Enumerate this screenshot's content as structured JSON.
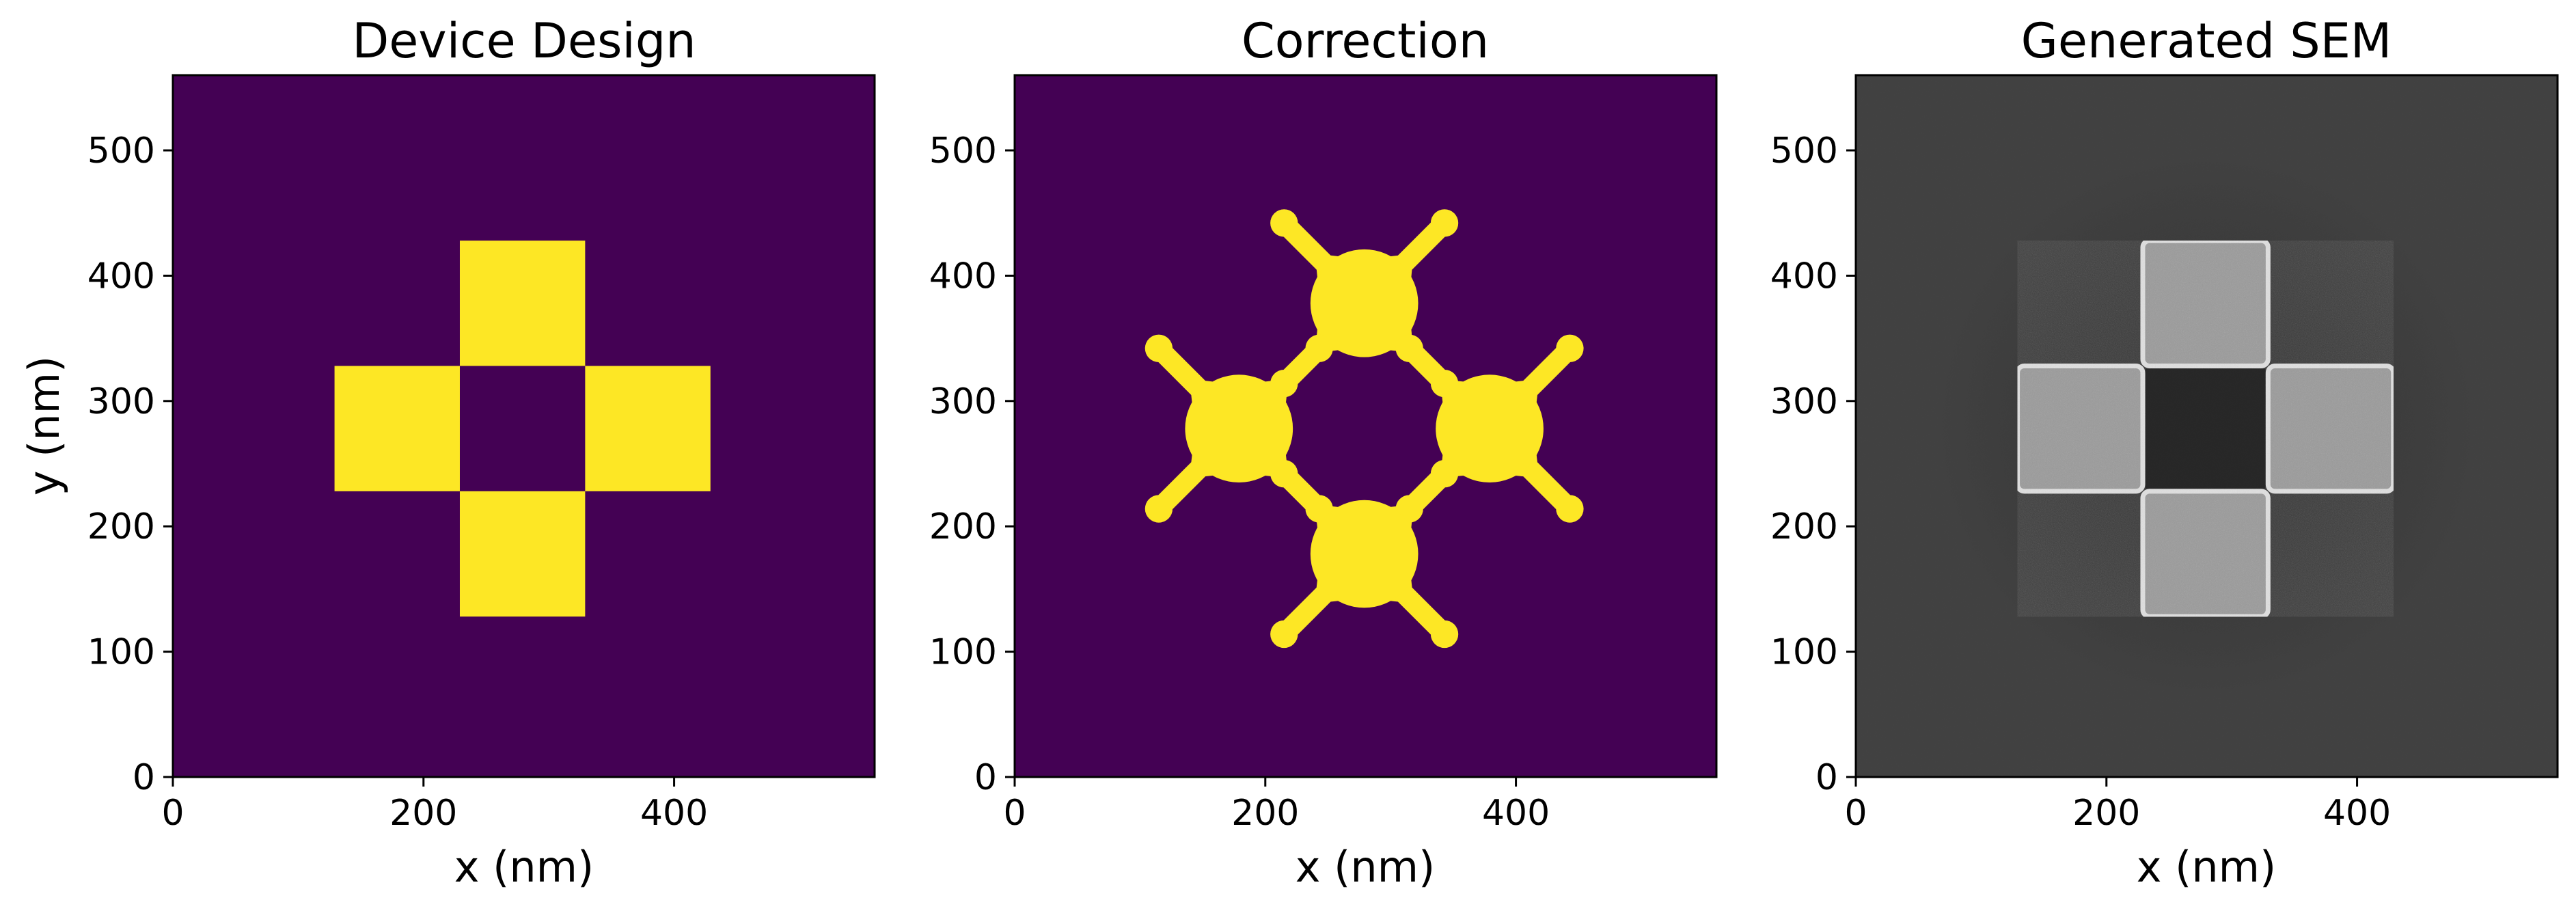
{
  "colors": {
    "background_purple": "#440154",
    "foreground_yellow": "#fde725",
    "sem_background": "#3c3c3c",
    "sem_square_fill": "#a0a0a0",
    "sem_edge": "#e6e6e6",
    "sem_hole": "#202020"
  },
  "chart_data": [
    {
      "type": "heatmap",
      "title": "Device Design",
      "xlabel": "x (nm)",
      "ylabel": "y (nm)",
      "xlim": [
        0,
        560
      ],
      "ylim": [
        0,
        560
      ],
      "xticks": [
        0,
        200,
        400
      ],
      "yticks": [
        0,
        100,
        200,
        300,
        400,
        500
      ],
      "grid": false,
      "colormap": "viridis (binary)",
      "shapes": [
        {
          "name": "top-square",
          "x": [
            229,
            329
          ],
          "y": [
            328,
            428
          ]
        },
        {
          "name": "left-square",
          "x": [
            129,
            229
          ],
          "y": [
            228,
            328
          ]
        },
        {
          "name": "right-square",
          "x": [
            329,
            429
          ],
          "y": [
            228,
            328
          ]
        },
        {
          "name": "bottom-square",
          "x": [
            229,
            329
          ],
          "y": [
            128,
            228
          ]
        }
      ]
    },
    {
      "type": "heatmap",
      "title": "Correction",
      "xlabel": "x (nm)",
      "ylabel": "",
      "xlim": [
        0,
        560
      ],
      "ylim": [
        0,
        560
      ],
      "xticks": [
        0,
        200,
        400
      ],
      "yticks": [
        0,
        100,
        200,
        300,
        400,
        500
      ],
      "grid": false,
      "colormap": "viridis (binary)",
      "shapes": [
        {
          "name": "top-blob",
          "center": [
            279,
            378
          ]
        },
        {
          "name": "left-blob",
          "center": [
            179,
            278
          ]
        },
        {
          "name": "right-blob",
          "center": [
            379,
            278
          ]
        },
        {
          "name": "bottom-blob",
          "center": [
            279,
            178
          ]
        }
      ]
    },
    {
      "type": "heatmap",
      "title": "Generated SEM",
      "xlabel": "x (nm)",
      "ylabel": "",
      "xlim": [
        0,
        560
      ],
      "ylim": [
        0,
        560
      ],
      "xticks": [
        0,
        200,
        400
      ],
      "yticks": [
        0,
        100,
        200,
        300,
        400,
        500
      ],
      "grid": false,
      "colormap": "gray",
      "shapes": [
        {
          "name": "top-square",
          "x": [
            229,
            329
          ],
          "y": [
            328,
            428
          ]
        },
        {
          "name": "left-square",
          "x": [
            129,
            229
          ],
          "y": [
            228,
            328
          ]
        },
        {
          "name": "right-square",
          "x": [
            329,
            429
          ],
          "y": [
            228,
            328
          ]
        },
        {
          "name": "bottom-square",
          "x": [
            229,
            329
          ],
          "y": [
            128,
            228
          ]
        }
      ]
    }
  ]
}
